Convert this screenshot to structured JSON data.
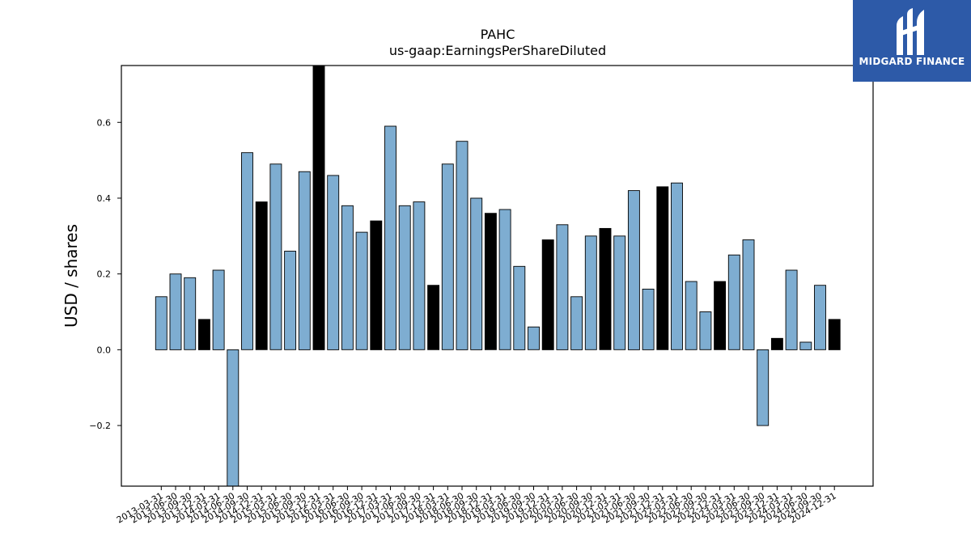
{
  "brand": {
    "name": "MIDGARD FINANCE",
    "bg_color": "#2d5aa8"
  },
  "chart_data": {
    "type": "bar",
    "title": "PAHC",
    "subtitle": "us-gaap:EarningsPerShareDiluted",
    "xlabel": "",
    "ylabel": "USD / shares",
    "ylim": [
      -0.36,
      0.75
    ],
    "yticks": [
      -0.2,
      0.0,
      0.2,
      0.4,
      0.6
    ],
    "ytick_labels": [
      "−0.2",
      "0.0",
      "0.2",
      "0.4",
      "0.6"
    ],
    "grid": false,
    "colors": {
      "quarterly": "#7eadd1",
      "annual": "#000000"
    },
    "categories": [
      "2013-03-31",
      "2013-06-30",
      "2013-09-30",
      "2013-12-31",
      "2014-03-31",
      "2014-06-30",
      "2014-09-30",
      "2014-12-31",
      "2015-03-31",
      "2015-06-30",
      "2015-09-30",
      "2015-12-31",
      "2016-03-31",
      "2016-06-30",
      "2016-09-30",
      "2016-12-31",
      "2017-03-31",
      "2017-06-30",
      "2017-09-30",
      "2017-12-31",
      "2018-03-31",
      "2018-06-30",
      "2018-09-30",
      "2018-12-31",
      "2019-03-31",
      "2019-06-30",
      "2019-09-30",
      "2019-12-31",
      "2020-03-31",
      "2020-06-30",
      "2020-09-30",
      "2020-12-31",
      "2021-03-31",
      "2021-06-30",
      "2021-09-30",
      "2021-12-31",
      "2022-03-31",
      "2022-06-30",
      "2022-09-30",
      "2022-12-31",
      "2023-03-31",
      "2023-06-30",
      "2023-09-30",
      "2023-12-31",
      "2024-03-31",
      "2024-06-30",
      "2024-09-30",
      "2024-12-31"
    ],
    "values": [
      0.14,
      0.2,
      0.19,
      0.08,
      0.21,
      -0.36,
      0.52,
      0.39,
      0.49,
      0.26,
      0.47,
      0.75,
      0.46,
      0.38,
      0.31,
      0.34,
      0.59,
      0.38,
      0.39,
      0.17,
      0.49,
      0.55,
      0.4,
      0.36,
      0.37,
      0.22,
      0.06,
      0.29,
      0.33,
      0.14,
      0.3,
      0.32,
      0.3,
      0.42,
      0.16,
      0.43,
      0.44,
      0.18,
      0.1,
      0.18,
      0.25,
      0.29,
      -0.2,
      0.03,
      0.21,
      0.02,
      0.17,
      0.08
    ],
    "highlight": [
      false,
      false,
      false,
      true,
      false,
      false,
      false,
      true,
      false,
      false,
      false,
      true,
      false,
      false,
      false,
      true,
      false,
      false,
      false,
      true,
      false,
      false,
      false,
      true,
      false,
      false,
      false,
      true,
      false,
      false,
      false,
      true,
      false,
      false,
      false,
      true,
      false,
      false,
      false,
      true,
      false,
      false,
      false,
      true,
      false,
      false,
      false,
      true
    ]
  }
}
